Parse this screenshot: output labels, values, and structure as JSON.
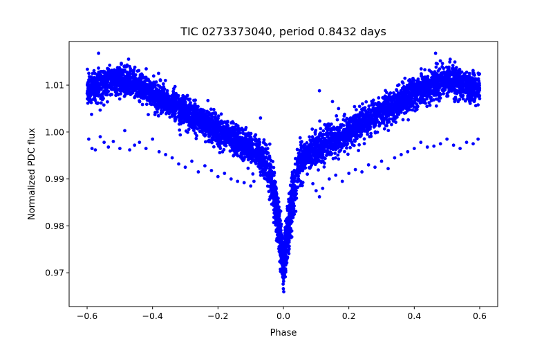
{
  "chart_data": {
    "type": "scatter",
    "title": "TIC 0273373040, period 0.8432 days",
    "xlabel": "Phase",
    "ylabel": "Normalized PDC flux",
    "xlim": [
      -0.655,
      0.655
    ],
    "ylim": [
      0.9628,
      1.0193
    ],
    "xticks": [
      -0.6,
      -0.4,
      -0.2,
      0.0,
      0.2,
      0.4,
      0.6
    ],
    "xtick_labels": [
      "−0.6",
      "−0.4",
      "−0.2",
      "0.0",
      "0.2",
      "0.4",
      "0.6"
    ],
    "yticks": [
      0.97,
      0.98,
      0.99,
      1.0,
      1.01
    ],
    "ytick_labels": [
      "0.97",
      "0.98",
      "0.99",
      "1.00",
      "1.01"
    ],
    "grid": false,
    "legend": "none",
    "marker_color": "#0000ff",
    "series": [
      {
        "points": [
          [
            -0.6,
            1.009
          ],
          [
            -0.58,
            1.0095
          ],
          [
            -0.56,
            1.01
          ],
          [
            -0.54,
            1.0105
          ],
          [
            -0.52,
            1.0108
          ],
          [
            -0.5,
            1.011
          ],
          [
            -0.48,
            1.0108
          ],
          [
            -0.46,
            1.0103
          ],
          [
            -0.44,
            1.0097
          ],
          [
            -0.42,
            1.009
          ],
          [
            -0.4,
            1.0082
          ],
          [
            -0.38,
            1.0074
          ],
          [
            -0.36,
            1.0066
          ],
          [
            -0.34,
            1.0058
          ],
          [
            -0.32,
            1.005
          ],
          [
            -0.3,
            1.0042
          ],
          [
            -0.28,
            1.0034
          ],
          [
            -0.26,
            1.0026
          ],
          [
            -0.24,
            1.0018
          ],
          [
            -0.22,
            1.001
          ],
          [
            -0.2,
            1.0002
          ],
          [
            -0.18,
            0.9994
          ],
          [
            -0.16,
            0.9986
          ],
          [
            -0.14,
            0.9978
          ],
          [
            -0.12,
            0.997
          ],
          [
            -0.1,
            0.9962
          ],
          [
            -0.08,
            0.9952
          ],
          [
            -0.06,
            0.994
          ],
          [
            -0.05,
            0.9928
          ],
          [
            -0.04,
            0.9908
          ],
          [
            -0.03,
            0.9875
          ],
          [
            -0.02,
            0.983
          ],
          [
            -0.01,
            0.977
          ],
          [
            0.0,
            0.9715
          ],
          [
            0.01,
            0.9765
          ],
          [
            0.02,
            0.9825
          ],
          [
            0.03,
            0.987
          ],
          [
            0.04,
            0.9905
          ],
          [
            0.05,
            0.9928
          ],
          [
            0.06,
            0.994
          ],
          [
            0.08,
            0.9952
          ],
          [
            0.1,
            0.9962
          ],
          [
            0.12,
            0.997
          ],
          [
            0.14,
            0.9978
          ],
          [
            0.16,
            0.9986
          ],
          [
            0.18,
            0.9994
          ],
          [
            0.2,
            1.0002
          ],
          [
            0.22,
            1.001
          ],
          [
            0.24,
            1.0018
          ],
          [
            0.26,
            1.0026
          ],
          [
            0.28,
            1.0034
          ],
          [
            0.3,
            1.0042
          ],
          [
            0.32,
            1.005
          ],
          [
            0.34,
            1.0058
          ],
          [
            0.36,
            1.0066
          ],
          [
            0.38,
            1.0074
          ],
          [
            0.4,
            1.0082
          ],
          [
            0.42,
            1.009
          ],
          [
            0.44,
            1.0097
          ],
          [
            0.46,
            1.0103
          ],
          [
            0.48,
            1.0108
          ],
          [
            0.5,
            1.011
          ],
          [
            0.52,
            1.0108
          ],
          [
            0.54,
            1.0105
          ],
          [
            0.56,
            1.01
          ],
          [
            0.58,
            1.0095
          ],
          [
            0.6,
            1.009
          ]
        ],
        "spread": 0.0032,
        "outliers": [
          [
            -0.595,
            0.9985
          ],
          [
            -0.585,
            0.9965
          ],
          [
            -0.575,
            0.9962
          ],
          [
            -0.56,
            0.999
          ],
          [
            -0.548,
            0.9978
          ],
          [
            -0.535,
            0.9968
          ],
          [
            -0.52,
            0.998
          ],
          [
            -0.5,
            0.9965
          ],
          [
            -0.485,
            1.0003
          ],
          [
            -0.47,
            0.9962
          ],
          [
            -0.455,
            0.9972
          ],
          [
            -0.44,
            0.9978
          ],
          [
            -0.42,
            0.9965
          ],
          [
            -0.4,
            0.9985
          ],
          [
            -0.38,
            0.9958
          ],
          [
            -0.36,
            0.9952
          ],
          [
            -0.34,
            0.9945
          ],
          [
            -0.32,
            0.9932
          ],
          [
            -0.3,
            0.9925
          ],
          [
            -0.28,
            0.9938
          ],
          [
            -0.26,
            0.9915
          ],
          [
            -0.24,
            0.9928
          ],
          [
            -0.22,
            0.9918
          ],
          [
            -0.2,
            0.9905
          ],
          [
            -0.18,
            0.9912
          ],
          [
            -0.16,
            0.99
          ],
          [
            -0.14,
            0.9895
          ],
          [
            -0.12,
            0.9892
          ],
          [
            -0.1,
            0.9885
          ],
          [
            -0.09,
            0.9895
          ],
          [
            0.09,
            0.989
          ],
          [
            0.1,
            0.9875
          ],
          [
            0.11,
            0.9862
          ],
          [
            0.12,
            0.988
          ],
          [
            0.14,
            0.99
          ],
          [
            0.16,
            0.9908
          ],
          [
            0.18,
            0.9895
          ],
          [
            0.2,
            0.9912
          ],
          [
            0.22,
            0.992
          ],
          [
            0.24,
            0.9915
          ],
          [
            0.26,
            0.993
          ],
          [
            0.28,
            0.9925
          ],
          [
            0.3,
            0.9938
          ],
          [
            0.32,
            0.9922
          ],
          [
            0.34,
            0.9945
          ],
          [
            0.36,
            0.9952
          ],
          [
            0.38,
            0.9958
          ],
          [
            0.4,
            0.9965
          ],
          [
            0.42,
            0.9978
          ],
          [
            0.44,
            0.9968
          ],
          [
            0.46,
            0.997
          ],
          [
            0.48,
            0.9975
          ],
          [
            0.5,
            0.9985
          ],
          [
            0.52,
            0.9972
          ],
          [
            0.54,
            0.9965
          ],
          [
            0.56,
            0.9978
          ],
          [
            0.58,
            0.9975
          ],
          [
            0.595,
            0.9985
          ],
          [
            -0.565,
            1.0168
          ],
          [
            0.465,
            1.0168
          ],
          [
            0.11,
            1.0088
          ],
          [
            0.15,
            1.0065
          ],
          [
            -0.07,
            1.003
          ]
        ]
      }
    ]
  }
}
